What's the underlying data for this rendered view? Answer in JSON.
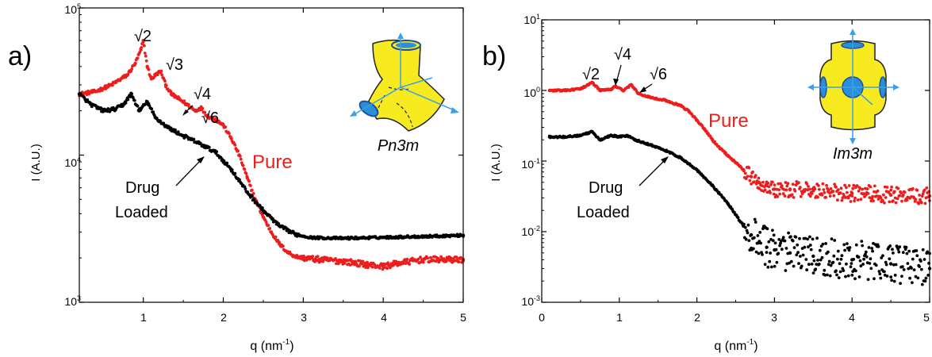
{
  "figure": {
    "panels": [
      {
        "label": "a)",
        "xlabel_base": "q (nm",
        "xlabel_exp": "-1",
        "xlabel_tail": ")",
        "ylabel": "I (A.U.)",
        "xlim": [
          0.2,
          5
        ],
        "ylim": [
          1000,
          100000
        ],
        "yscale": "log",
        "xticks": [
          "1",
          "2",
          "3",
          "4",
          "5"
        ],
        "yticks": [
          {
            "base": "10",
            "exp": "3"
          },
          {
            "base": "10",
            "exp": "4"
          },
          {
            "base": "10",
            "exp": "5"
          }
        ],
        "peak_labels": [
          "√2",
          "√3",
          "√4",
          "√6"
        ],
        "series_labels": {
          "pure": "Pure",
          "loaded_1": "Drug",
          "loaded_2": "Loaded"
        },
        "inset_label": "Pn3m"
      },
      {
        "label": "b)",
        "xlabel_base": "q (nm",
        "xlabel_exp": "-1",
        "xlabel_tail": ")",
        "ylabel": "I (A.U.)",
        "xlim": [
          0,
          5
        ],
        "ylim": [
          0.001,
          10
        ],
        "yscale": "log",
        "xticks": [
          "0",
          "1",
          "2",
          "3",
          "4",
          "5"
        ],
        "yticks": [
          {
            "base": "10",
            "exp": "-3"
          },
          {
            "base": "10",
            "exp": "-2"
          },
          {
            "base": "10",
            "exp": "-1"
          },
          {
            "base": "10",
            "exp": "0"
          },
          {
            "base": "10",
            "exp": "1"
          }
        ],
        "peak_labels": [
          "√2",
          "√4",
          "√6"
        ],
        "series_labels": {
          "pure": "Pure",
          "loaded_1": "Drug",
          "loaded_2": "Loaded"
        },
        "inset_label": "Im3m"
      }
    ]
  },
  "chart_data": [
    {
      "type": "scatter",
      "panel": "a",
      "xlim": [
        0.2,
        5
      ],
      "ylim": [
        1000,
        100000
      ],
      "yscale": "log",
      "colors": {
        "pure": "#ee1c1c",
        "loaded": "#000000"
      },
      "series": [
        {
          "name": "Pure",
          "x": [
            0.2,
            0.4,
            0.6,
            0.8,
            0.9,
            0.97,
            1.0,
            1.05,
            1.1,
            1.18,
            1.22,
            1.28,
            1.35,
            1.45,
            1.55,
            1.65,
            1.72,
            1.8,
            1.9,
            2.0,
            2.1,
            2.2,
            2.3,
            2.4,
            2.5,
            2.6,
            2.7,
            2.8,
            2.9,
            3.0,
            3.2,
            3.5,
            3.8,
            4.0,
            4.2,
            4.5,
            4.8,
            5.0
          ],
          "y": [
            26000,
            27000,
            30000,
            35000,
            42000,
            52000,
            60000,
            40000,
            33000,
            36000,
            37000,
            30000,
            26000,
            24000,
            22000,
            20000,
            21000,
            18500,
            17500,
            16000,
            13000,
            10000,
            7000,
            5000,
            3800,
            3000,
            2500,
            2200,
            2050,
            2000,
            1950,
            1900,
            1800,
            1750,
            1850,
            1950,
            1950,
            1950
          ]
        },
        {
          "name": "Drug Loaded",
          "x": [
            0.2,
            0.35,
            0.5,
            0.65,
            0.75,
            0.85,
            0.95,
            1.05,
            1.15,
            1.3,
            1.5,
            1.7,
            1.9,
            2.1,
            2.3,
            2.5,
            2.7,
            2.9,
            3.1,
            3.5,
            4.0,
            4.5,
            5.0
          ],
          "y": [
            26000,
            22000,
            20000,
            20500,
            22000,
            26000,
            20000,
            23000,
            18000,
            15500,
            13500,
            12000,
            10500,
            8000,
            5600,
            4200,
            3300,
            2900,
            2750,
            2720,
            2760,
            2800,
            2850
          ]
        }
      ]
    },
    {
      "type": "scatter",
      "panel": "b",
      "xlim": [
        0,
        5
      ],
      "ylim": [
        0.001,
        10
      ],
      "yscale": "log",
      "colors": {
        "pure": "#ee1c1c",
        "loaded": "#000000"
      },
      "series": [
        {
          "name": "Pure",
          "x": [
            0.1,
            0.3,
            0.5,
            0.6,
            0.65,
            0.75,
            0.9,
            0.95,
            1.05,
            1.15,
            1.25,
            1.4,
            1.6,
            1.8,
            1.9,
            2.0,
            2.1,
            2.2,
            2.3,
            2.4,
            2.5,
            2.6,
            2.7,
            2.8,
            2.9,
            3.0,
            3.2,
            3.5,
            4.0,
            4.5,
            5.0
          ],
          "y": [
            1.0,
            1.0,
            1.05,
            1.2,
            1.3,
            1.0,
            1.05,
            1.15,
            1.0,
            1.2,
            0.9,
            0.8,
            0.72,
            0.6,
            0.5,
            0.38,
            0.28,
            0.2,
            0.15,
            0.12,
            0.095,
            0.075,
            0.06,
            0.05,
            0.045,
            0.04,
            0.04,
            0.038,
            0.035,
            0.033,
            0.032
          ]
        },
        {
          "name": "Drug Loaded",
          "x": [
            0.1,
            0.3,
            0.5,
            0.6,
            0.65,
            0.75,
            0.9,
            1.0,
            1.1,
            1.2,
            1.4,
            1.6,
            1.8,
            2.0,
            2.2,
            2.4,
            2.6,
            2.7,
            2.8,
            2.9,
            3.0,
            3.2,
            3.5,
            4.0,
            4.5,
            5.0
          ],
          "y": [
            0.22,
            0.22,
            0.23,
            0.25,
            0.26,
            0.2,
            0.23,
            0.22,
            0.23,
            0.2,
            0.17,
            0.14,
            0.11,
            0.075,
            0.045,
            0.025,
            0.012,
            0.009,
            0.007,
            0.006,
            0.0055,
            0.005,
            0.0045,
            0.004,
            0.0035,
            0.003
          ]
        }
      ]
    }
  ]
}
